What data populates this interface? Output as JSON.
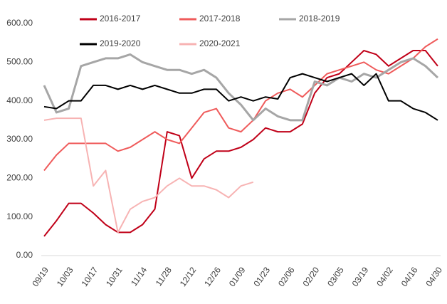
{
  "chart_data": {
    "type": "line",
    "categories": [
      "09/19",
      null,
      "10/03",
      null,
      "10/17",
      null,
      "10/31",
      null,
      "11/14",
      null,
      "11/28",
      null,
      "12/12",
      null,
      "12/26",
      null,
      "01/09",
      null,
      "01/23",
      null,
      "02/06",
      null,
      "02/20",
      null,
      "03/05",
      null,
      "03/19",
      null,
      "04/02",
      null,
      "04/16",
      null,
      "04/30"
    ],
    "series": [
      {
        "name": "2016-2017",
        "color": "#c00018",
        "values": [
          50,
          90,
          135,
          135,
          110,
          80,
          60,
          60,
          80,
          120,
          320,
          310,
          200,
          250,
          270,
          270,
          280,
          300,
          330,
          320,
          320,
          340,
          420,
          460,
          470,
          500,
          530,
          520,
          490,
          510,
          530,
          530,
          490
        ]
      },
      {
        "name": "2017-2018",
        "color": "#ef5b5b",
        "values": [
          220,
          260,
          290,
          290,
          290,
          290,
          270,
          280,
          300,
          320,
          300,
          290,
          330,
          370,
          380,
          330,
          320,
          350,
          400,
          420,
          430,
          410,
          440,
          470,
          480,
          490,
          500,
          480,
          470,
          490,
          510,
          540,
          560
        ]
      },
      {
        "name": "2018-2019",
        "color": "#a6a6a6",
        "values": [
          440,
          370,
          380,
          490,
          500,
          510,
          510,
          520,
          500,
          490,
          480,
          480,
          470,
          480,
          460,
          420,
          390,
          350,
          380,
          360,
          350,
          350,
          450,
          440,
          460,
          450,
          470,
          460,
          480,
          500,
          510,
          490,
          460
        ]
      },
      {
        "name": "2019-2020",
        "color": "#000000",
        "values": [
          385,
          380,
          400,
          400,
          440,
          440,
          430,
          440,
          430,
          440,
          430,
          420,
          420,
          430,
          430,
          400,
          410,
          400,
          410,
          405,
          460,
          470,
          460,
          450,
          460,
          470,
          440,
          470,
          400,
          400,
          380,
          370,
          350
        ]
      },
      {
        "name": "2020-2021",
        "color": "#f7b3b3",
        "values": [
          350,
          355,
          355,
          355,
          180,
          220,
          60,
          120,
          140,
          150,
          180,
          200,
          180,
          180,
          170,
          150,
          180,
          190,
          null,
          null,
          null,
          null,
          null,
          null,
          null,
          null,
          null,
          null,
          null,
          null,
          null,
          null,
          null
        ]
      }
    ],
    "ylim": [
      0,
      600
    ],
    "yticks": [
      {
        "value": 0,
        "label": "0.00"
      },
      {
        "value": 100,
        "label": "100.00"
      },
      {
        "value": 200,
        "label": "200.00"
      },
      {
        "value": 300,
        "label": "300.00"
      },
      {
        "value": 400,
        "label": "400.00"
      },
      {
        "value": 500,
        "label": "500.00"
      },
      {
        "value": 600,
        "label": "600.00"
      }
    ],
    "grid": false
  }
}
